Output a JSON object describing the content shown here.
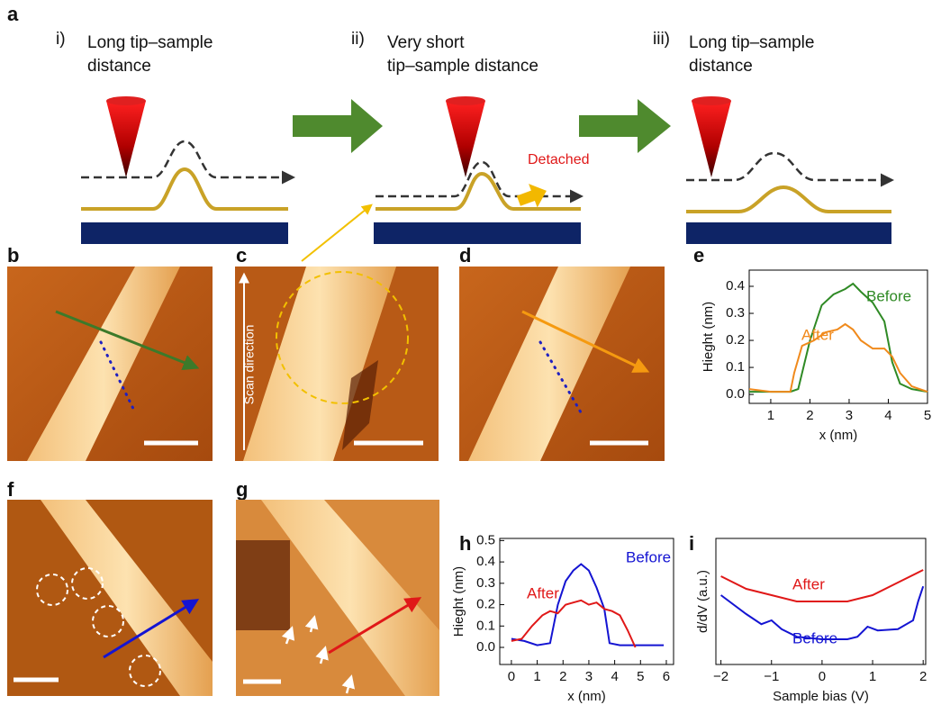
{
  "panel_a": {
    "label": "a",
    "steps": [
      {
        "numeral": "i)",
        "lines": [
          "Long tip–sample",
          "distance"
        ]
      },
      {
        "numeral": "ii)",
        "lines": [
          "Very short",
          "tip–sample distance"
        ]
      },
      {
        "numeral": "iii)",
        "lines": [
          "Long tip–sample",
          "distance"
        ]
      }
    ],
    "detached": "Detached"
  },
  "panel_labels": [
    "b",
    "c",
    "d",
    "e",
    "f",
    "g",
    "h",
    "i"
  ],
  "scan_direction": "Scan direction",
  "chart_data": [
    {
      "type": "line",
      "xlabel": "x (nm)",
      "ylabel": "Hieght (nm)",
      "xlim": [
        0.45,
        5
      ],
      "ylim": [
        -0.033,
        0.46
      ],
      "xticks": [
        1,
        2,
        3,
        4,
        5
      ],
      "yticks": [
        {
          "value": 0,
          "label": "0.0"
        },
        0.1,
        0.2,
        0.3,
        0.4
      ],
      "series": [
        {
          "name": "Before",
          "color": "#2f8a25",
          "x": [
            0.45,
            1.0,
            1.5,
            1.7,
            2.0,
            2.3,
            2.6,
            2.9,
            3.1,
            3.3,
            3.6,
            3.9,
            4.1,
            4.3,
            4.6,
            5.0
          ],
          "values": [
            0.01,
            0.01,
            0.01,
            0.02,
            0.2,
            0.33,
            0.37,
            0.39,
            0.41,
            0.38,
            0.34,
            0.27,
            0.12,
            0.04,
            0.02,
            0.01
          ]
        },
        {
          "name": "After",
          "color": "#f08a1c",
          "x": [
            0.45,
            1.0,
            1.5,
            1.6,
            1.8,
            2.1,
            2.4,
            2.7,
            2.9,
            3.1,
            3.3,
            3.6,
            3.9,
            4.1,
            4.3,
            4.6,
            5.0
          ],
          "values": [
            0.02,
            0.01,
            0.01,
            0.08,
            0.18,
            0.2,
            0.23,
            0.24,
            0.26,
            0.24,
            0.2,
            0.17,
            0.17,
            0.14,
            0.08,
            0.03,
            0.01
          ]
        }
      ]
    },
    {
      "type": "line",
      "xlabel": "x (nm)",
      "ylabel": "Hieght (nm)",
      "xlim": [
        -0.45,
        6.28
      ],
      "ylim": [
        -0.08,
        0.51
      ],
      "xticks": [
        0,
        1,
        2,
        3,
        4,
        5,
        6
      ],
      "yticks": [
        {
          "value": 0,
          "label": "0.0"
        },
        0.1,
        0.2,
        0.3,
        0.4,
        0.5
      ],
      "series": [
        {
          "name": "Before",
          "color": "#1414d2",
          "x": [
            0,
            0.5,
            1.0,
            1.5,
            1.8,
            2.1,
            2.4,
            2.7,
            3.0,
            3.3,
            3.6,
            3.8,
            4.2,
            5.0,
            5.9
          ],
          "values": [
            0.04,
            0.03,
            0.01,
            0.02,
            0.2,
            0.31,
            0.36,
            0.39,
            0.36,
            0.28,
            0.18,
            0.02,
            0.01,
            0.01,
            0.01
          ]
        },
        {
          "name": "After",
          "color": "#e01818",
          "x": [
            0,
            0.4,
            0.8,
            1.2,
            1.5,
            1.8,
            2.1,
            2.4,
            2.7,
            3.0,
            3.3,
            3.6,
            3.9,
            4.2,
            4.5,
            4.8
          ],
          "values": [
            0.03,
            0.04,
            0.1,
            0.15,
            0.17,
            0.16,
            0.2,
            0.21,
            0.22,
            0.2,
            0.21,
            0.18,
            0.17,
            0.15,
            0.08,
            0.0
          ]
        }
      ]
    },
    {
      "type": "line",
      "xlabel": "Sample bias (V)",
      "ylabel": "d/dV (a.u.)",
      "xlim": [
        -2.1,
        2.05
      ],
      "ylim": [
        0,
        1
      ],
      "xticks": [
        {
          "value": -2,
          "label": "−2"
        },
        {
          "value": -1,
          "label": "−1"
        },
        0,
        1,
        2
      ],
      "series": [
        {
          "name": "After",
          "color": "#e01818",
          "x": [
            -2,
            -1.5,
            -1,
            -0.5,
            0,
            0.5,
            1,
            1.5,
            2
          ],
          "values": [
            0.7,
            0.6,
            0.55,
            0.5,
            0.5,
            0.5,
            0.55,
            0.65,
            0.75
          ]
        },
        {
          "name": "Before",
          "color": "#1414d2",
          "x": [
            -2,
            -1.5,
            -1.2,
            -1,
            -0.8,
            -0.5,
            0,
            0.5,
            0.7,
            0.9,
            1.1,
            1.5,
            1.8,
            1.9,
            2
          ],
          "values": [
            0.55,
            0.4,
            0.32,
            0.35,
            0.28,
            0.22,
            0.2,
            0.2,
            0.22,
            0.3,
            0.27,
            0.28,
            0.35,
            0.5,
            0.62
          ]
        }
      ]
    }
  ]
}
